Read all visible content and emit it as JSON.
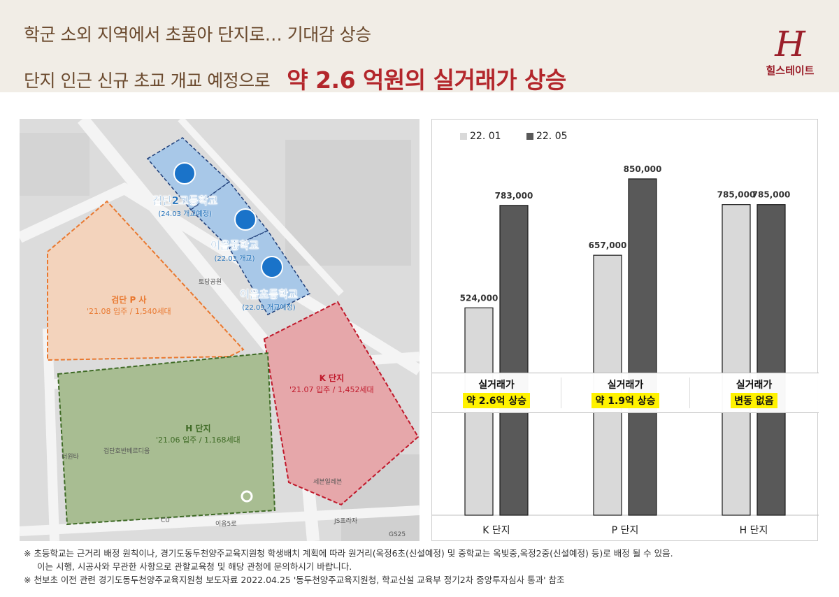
{
  "header": {
    "line1": "학군 소외 지역에서 초품아 단지로… 기대감 상승",
    "line2_prefix": "단지 인근 신규 초교 개교 예정으로",
    "line2_emphasis": "약 2.6 억원의 실거래가 상승",
    "logo_mark": "H",
    "logo_text": "힐스테이트"
  },
  "map": {
    "zones": [
      {
        "name": "검단 P 사",
        "info": "'21.08 입주 / 1,540세대",
        "color": "#e9782f"
      },
      {
        "name": "K 단지",
        "info": "'21.07 입주 / 1,452세대",
        "color": "#c0192b"
      },
      {
        "name": "H 단지",
        "info": "'21.06 입주 / 1,168세대",
        "color": "#3f6b26"
      }
    ],
    "schools": [
      {
        "name": "검단2고등학교",
        "note": "(24.03 개교예정)"
      },
      {
        "name": "이음중학교",
        "note": "(22.03 개교)"
      },
      {
        "name": "이음초등학교",
        "note": "(22.09 개교예정)"
      }
    ],
    "pois": [
      "토당공원",
      "검단호반베르디움",
      "더원타",
      "세븐일레븐",
      "JS프라자",
      "이음5로",
      "CU",
      "GS25"
    ]
  },
  "chart_data": {
    "type": "bar",
    "categories": [
      "K 단지",
      "P 단지",
      "H 단지"
    ],
    "series": [
      {
        "name": "22. 01",
        "values": [
          524000,
          657000,
          785000
        ],
        "color": "#d9d9d9"
      },
      {
        "name": "22. 05",
        "values": [
          783000,
          850000,
          785000
        ],
        "color": "#595959"
      }
    ],
    "data_labels": [
      [
        "524,000",
        "657,000",
        "785,000"
      ],
      [
        "783,000",
        "850,000",
        "785,000"
      ]
    ],
    "ylim": [
      0,
      1000000
    ],
    "grid": false,
    "legend": "top-left",
    "notes": [
      {
        "title": "실거래가",
        "value": "약 2.6억 상승"
      },
      {
        "title": "실거래가",
        "value": "약 1.9억 상승"
      },
      {
        "title": "실거래가",
        "value": "변동 없음"
      }
    ]
  },
  "footnotes": [
    "※ 초등학교는 근거리 배정 원칙이나, 경기도동두천양주교육지원청 학생배치 계획에 따라 원거리(옥정6초(신설예정) 및 중학교는 옥빛중,옥정2중(신설예정) 등)로 배정 될 수 있음.",
    "이는 시행, 시공사와 무관한 사항으로 관할교육청 및 해당 관청에 문의하시기 바랍니다.",
    "※ 천보초 이전 관련 경기도동두천양주교육지원청 보도자료 2022.04.25 '동두천양주교육지원청, 학교신설 교육부 정기2차 중앙투자심사 통과' 참조"
  ]
}
